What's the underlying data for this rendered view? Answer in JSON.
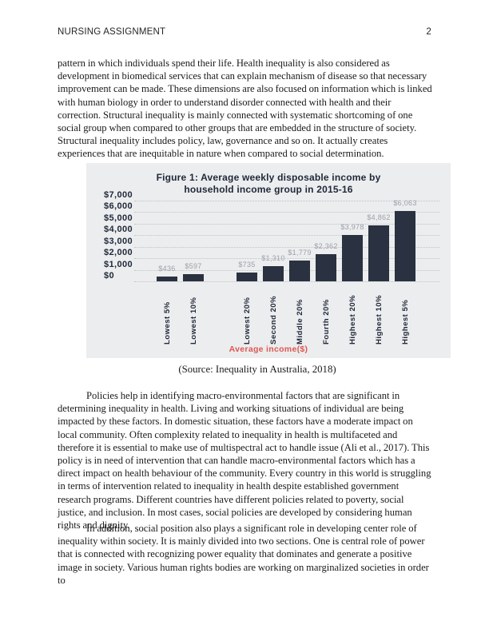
{
  "header": {
    "title": "NURSING ASSIGNMENT",
    "page_number": "2"
  },
  "paragraphs": {
    "p1": "pattern in which individuals spend their life. Health inequality is also considered as development in biomedical services that can explain mechanism of disease so that necessary improvement can be made. These dimensions are also focused on information which is linked with human biology in order to understand disorder connected with health and their correction. Structural inequality is mainly connected with systematic shortcoming of one social group when compared to other groups that are embedded in the structure of society. Structural inequality includes policy, law, governance and so on. It actually creates experiences that are inequitable in nature when compared to social determination.",
    "p2": "Policies help in identifying macro-environmental factors that are significant in determining inequality in health. Living and working situations of individual are being impacted by these factors. In domestic situation, these factors have a moderate impact on local community. Often complexity related to inequality in health is multifaceted and therefore it is essential to make use of multispectral act to handle issue (Ali et al., 2017). This policy is in need of intervention that can handle macro-environmental factors which has a direct impact on health behaviour of the community. Every country in this world is struggling in terms of intervention related to inequality in health despite established government research programs. Different countries have different policies related to poverty, social justice, and inclusion. In most cases, social policies are developed by considering human rights and dignity.",
    "p3": "In addition, social position also plays a significant role in developing center role of inequality within society. It is mainly divided into two sections. One is central role of power that is connected with recognizing power equality that dominates and generate a positive image in society. Various human rights bodies are working on marginalized societies in order to"
  },
  "figure": {
    "caption": "(Source: Inequality in Australia, 2018)"
  },
  "chart_data": {
    "type": "bar",
    "title": "Figure 1: Average weekly disposable income by household income group in 2015-16",
    "title_lines": [
      "Figure 1: Average weekly disposable income by",
      "household income group in 2015-16"
    ],
    "categories": [
      "Lowest 5%",
      "Lowest 10%",
      "Lowest 20%",
      "Second 20%",
      "Middle 20%",
      "Fourth 20%",
      "Highest 20%",
      "Highest 10%",
      "Highest 5%"
    ],
    "values": [
      436,
      597,
      735,
      1310,
      1779,
      2362,
      3978,
      4862,
      6063
    ],
    "value_labels": [
      "$436",
      "$597",
      "$735",
      "$1,310",
      "$1,779",
      "$2,362",
      "$3,978",
      "$4,862",
      "$6,063"
    ],
    "xlabel": "Average income($)",
    "ylabel": "",
    "ylim": [
      0,
      7000
    ],
    "ytick_step": 1000,
    "ytick_labels": [
      "$7,000",
      "$6,000",
      "$5,000",
      "$4,000",
      "$3,000",
      "$2,000",
      "$1,000",
      "$0"
    ],
    "grid": "dotted-horizontal",
    "legend": "none",
    "group_gap_after_category": "Lowest 10%",
    "colors": {
      "bar": "#2a3140",
      "panel_background": "#ecedee",
      "grid": "#bfc2c6",
      "value_label": "#9ba1a9",
      "axis_text": "#20293a",
      "xlabel_text": "#dd5853"
    }
  }
}
